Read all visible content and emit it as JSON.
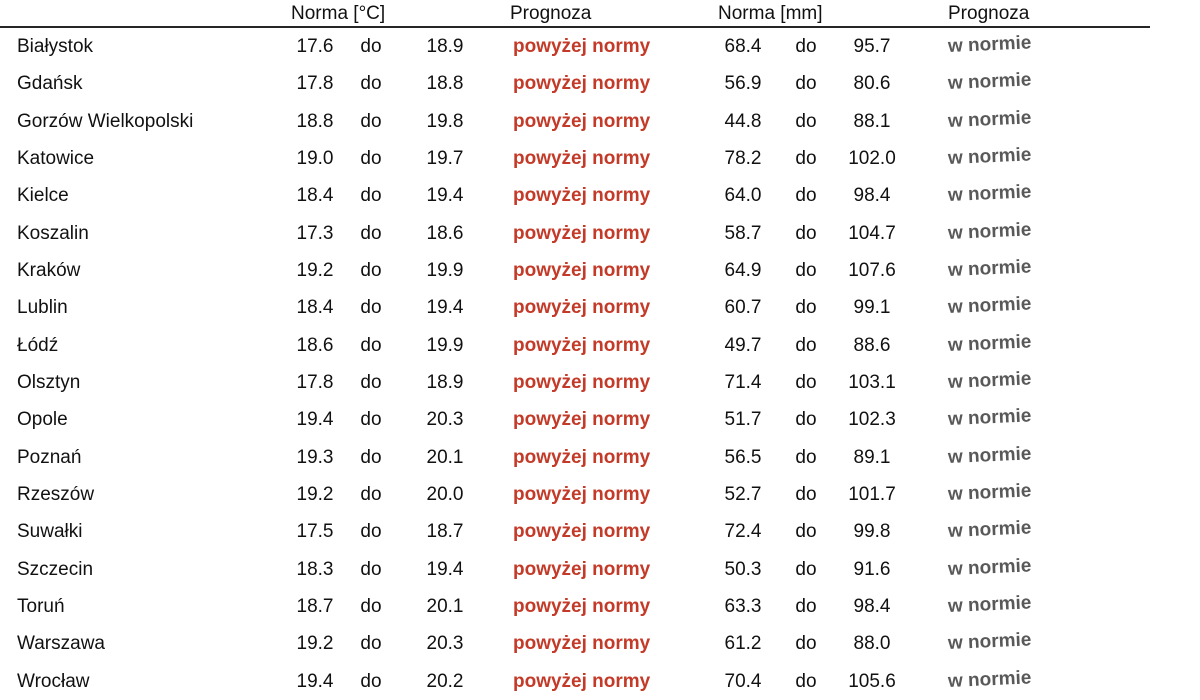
{
  "colors": {
    "above_norm_red": "#c43a28",
    "in_norm_gray": "#595959",
    "text_black": "#111111",
    "rule_line": "#262626"
  },
  "table": {
    "headers": {
      "temp_norm": "Norma [°C]",
      "temp_forecast": "Prognoza",
      "precip_norm": "Norma [mm]",
      "precip_forecast": "Prognoza"
    },
    "range_separator": "do",
    "rows": [
      {
        "city": "Białystok",
        "temp_min": "17.6",
        "temp_max": "18.9",
        "temp_forecast": "powyżej normy",
        "precip_min": "68.4",
        "precip_max": "95.7",
        "precip_forecast": "w normie"
      },
      {
        "city": "Gdańsk",
        "temp_min": "17.8",
        "temp_max": "18.8",
        "temp_forecast": "powyżej normy",
        "precip_min": "56.9",
        "precip_max": "80.6",
        "precip_forecast": "w normie"
      },
      {
        "city": "Gorzów Wielkopolski",
        "temp_min": "18.8",
        "temp_max": "19.8",
        "temp_forecast": "powyżej normy",
        "precip_min": "44.8",
        "precip_max": "88.1",
        "precip_forecast": "w normie"
      },
      {
        "city": "Katowice",
        "temp_min": "19.0",
        "temp_max": "19.7",
        "temp_forecast": "powyżej normy",
        "precip_min": "78.2",
        "precip_max": "102.0",
        "precip_forecast": "w normie"
      },
      {
        "city": "Kielce",
        "temp_min": "18.4",
        "temp_max": "19.4",
        "temp_forecast": "powyżej normy",
        "precip_min": "64.0",
        "precip_max": "98.4",
        "precip_forecast": "w normie"
      },
      {
        "city": "Koszalin",
        "temp_min": "17.3",
        "temp_max": "18.6",
        "temp_forecast": "powyżej normy",
        "precip_min": "58.7",
        "precip_max": "104.7",
        "precip_forecast": "w normie"
      },
      {
        "city": "Kraków",
        "temp_min": "19.2",
        "temp_max": "19.9",
        "temp_forecast": "powyżej normy",
        "precip_min": "64.9",
        "precip_max": "107.6",
        "precip_forecast": "w normie"
      },
      {
        "city": "Lublin",
        "temp_min": "18.4",
        "temp_max": "19.4",
        "temp_forecast": "powyżej normy",
        "precip_min": "60.7",
        "precip_max": "99.1",
        "precip_forecast": "w normie"
      },
      {
        "city": "Łódź",
        "temp_min": "18.6",
        "temp_max": "19.9",
        "temp_forecast": "powyżej normy",
        "precip_min": "49.7",
        "precip_max": "88.6",
        "precip_forecast": "w normie"
      },
      {
        "city": "Olsztyn",
        "temp_min": "17.8",
        "temp_max": "18.9",
        "temp_forecast": "powyżej normy",
        "precip_min": "71.4",
        "precip_max": "103.1",
        "precip_forecast": "w normie"
      },
      {
        "city": "Opole",
        "temp_min": "19.4",
        "temp_max": "20.3",
        "temp_forecast": "powyżej normy",
        "precip_min": "51.7",
        "precip_max": "102.3",
        "precip_forecast": "w normie"
      },
      {
        "city": "Poznań",
        "temp_min": "19.3",
        "temp_max": "20.1",
        "temp_forecast": "powyżej normy",
        "precip_min": "56.5",
        "precip_max": "89.1",
        "precip_forecast": "w normie"
      },
      {
        "city": "Rzeszów",
        "temp_min": "19.2",
        "temp_max": "20.0",
        "temp_forecast": "powyżej normy",
        "precip_min": "52.7",
        "precip_max": "101.7",
        "precip_forecast": "w normie"
      },
      {
        "city": "Suwałki",
        "temp_min": "17.5",
        "temp_max": "18.7",
        "temp_forecast": "powyżej normy",
        "precip_min": "72.4",
        "precip_max": "99.8",
        "precip_forecast": "w normie"
      },
      {
        "city": "Szczecin",
        "temp_min": "18.3",
        "temp_max": "19.4",
        "temp_forecast": "powyżej normy",
        "precip_min": "50.3",
        "precip_max": "91.6",
        "precip_forecast": "w normie"
      },
      {
        "city": "Toruń",
        "temp_min": "18.7",
        "temp_max": "20.1",
        "temp_forecast": "powyżej normy",
        "precip_min": "63.3",
        "precip_max": "98.4",
        "precip_forecast": "w normie"
      },
      {
        "city": "Warszawa",
        "temp_min": "19.2",
        "temp_max": "20.3",
        "temp_forecast": "powyżej normy",
        "precip_min": "61.2",
        "precip_max": "88.0",
        "precip_forecast": "w normie"
      },
      {
        "city": "Wrocław",
        "temp_min": "19.4",
        "temp_max": "20.2",
        "temp_forecast": "powyżej normy",
        "precip_min": "70.4",
        "precip_max": "105.6",
        "precip_forecast": "w normie"
      }
    ]
  }
}
